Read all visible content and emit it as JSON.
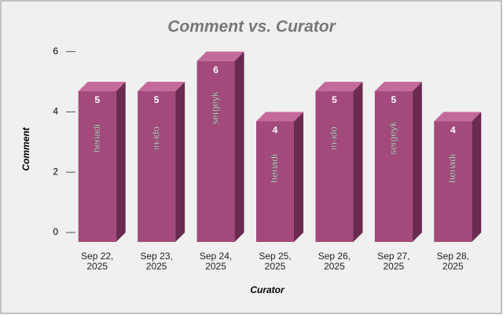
{
  "chart_data": {
    "type": "bar3d",
    "title": "Comment vs. Curator",
    "x_label": "Curator",
    "y_label": "Comment",
    "categories": [
      "Sep 22, 2025",
      "Sep 23, 2025",
      "Sep 24, 2025",
      "Sep 25, 2025",
      "Sep 26, 2025",
      "Sep 27, 2025",
      "Sep 28, 2025"
    ],
    "values": [
      5,
      5,
      6,
      4,
      5,
      5,
      4
    ],
    "bar_labels": [
      "heriadi",
      "m-ido",
      "sergeyk",
      "heriadi",
      "m-ido",
      "sergeyk",
      "heriadi"
    ],
    "color": "#a3497c",
    "ylim": [
      0,
      6.2
    ],
    "yticks": [
      0,
      2,
      4,
      6
    ]
  }
}
